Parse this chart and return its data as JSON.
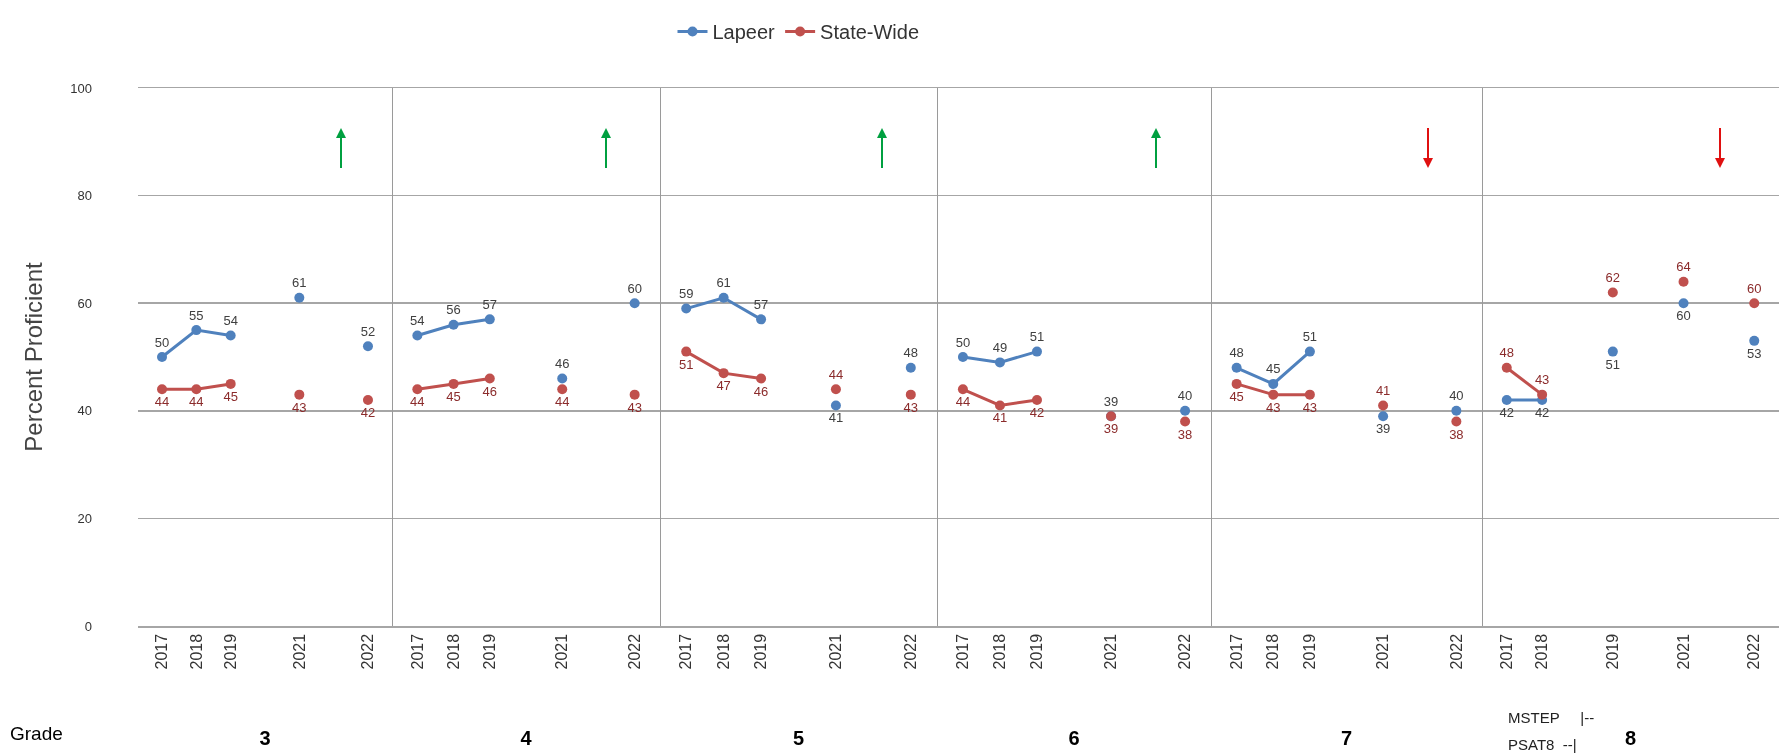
{
  "chart_data": [
    {
      "type": "line",
      "xlabel": "3",
      "ylabel": "Percent Proficient",
      "categories": [
        "2017",
        "2018",
        "2019",
        null,
        "2021",
        null,
        "2022"
      ],
      "ylim": [
        0,
        100
      ],
      "yticks": [
        0,
        20,
        40,
        60,
        80,
        100
      ],
      "grid": "y",
      "marker": "circle",
      "data_labels": true,
      "annotations": [
        "Grade"
      ],
      "series": [
        {
          "color": "#4f81bd",
          "values": [
            50,
            55,
            54,
            null,
            61,
            null,
            52
          ]
        },
        {
          "color": "#c0504d",
          "values": [
            44,
            44,
            45,
            null,
            43,
            null,
            42
          ]
        }
      ]
    },
    {
      "type": "line",
      "xlabel": "4",
      "categories": [
        "2017",
        "2018",
        "2019",
        null,
        "2021",
        null,
        "2022"
      ],
      "ylim": [
        0,
        100
      ],
      "yticks": [
        0,
        20,
        40,
        60,
        80,
        100
      ],
      "tick_labels": "x",
      "grid": "y",
      "marker": "circle",
      "data_labels": true,
      "series": [
        {
          "color": "#4f81bd",
          "values": [
            54,
            56,
            57,
            null,
            46,
            null,
            60
          ]
        },
        {
          "color": "#c0504d",
          "values": [
            44,
            45,
            46,
            null,
            44,
            null,
            43
          ]
        }
      ]
    },
    {
      "type": "line",
      "xlabel": "5",
      "categories": [
        "2017",
        "2018",
        "2019",
        null,
        "2021",
        null,
        "2022"
      ],
      "ylim": [
        0,
        100
      ],
      "yticks": [
        0,
        20,
        40,
        60,
        80,
        100
      ],
      "tick_labels": "x",
      "grid": "y",
      "marker": "circle",
      "data_labels": true,
      "legend": "top",
      "series": [
        {
          "name": "Lapeer",
          "color": "#4f81bd",
          "values": [
            59,
            61,
            57,
            null,
            41,
            null,
            48
          ]
        },
        {
          "name": "State-Wide",
          "color": "#c0504d",
          "values": [
            51,
            47,
            46,
            null,
            44,
            null,
            43
          ]
        }
      ]
    },
    {
      "type": "line",
      "xlabel": "6",
      "categories": [
        "2017",
        "2018",
        "2019",
        null,
        "2021",
        null,
        "2022"
      ],
      "ylim": [
        0,
        100
      ],
      "yticks": [
        0,
        20,
        40,
        60,
        80,
        100
      ],
      "tick_labels": "x",
      "grid": "y",
      "marker": "circle",
      "data_labels": true,
      "series": [
        {
          "color": "#4f81bd",
          "values": [
            50,
            49,
            51,
            null,
            39,
            null,
            40
          ]
        },
        {
          "color": "#c0504d",
          "values": [
            44,
            41,
            42,
            null,
            39,
            null,
            38
          ]
        }
      ]
    },
    {
      "type": "line",
      "xlabel": "7",
      "categories": [
        "2017",
        "2018",
        "2019",
        null,
        "2021",
        null,
        "2022"
      ],
      "ylim": [
        0,
        100
      ],
      "yticks": [
        0,
        20,
        40,
        60,
        80,
        100
      ],
      "tick_labels": "x",
      "grid": "y",
      "marker": "circle",
      "data_labels": true,
      "series": [
        {
          "color": "#4f81bd",
          "values": [
            48,
            45,
            51,
            null,
            39,
            null,
            40
          ]
        },
        {
          "color": "#c0504d",
          "values": [
            45,
            43,
            43,
            null,
            41,
            null,
            38
          ]
        }
      ]
    },
    {
      "type": "line",
      "xlabel": "8",
      "categories": [
        "2017",
        "2018",
        null,
        "2019",
        null,
        "2021",
        null,
        "2022"
      ],
      "ylim": [
        0,
        100
      ],
      "yticks": [
        0,
        20,
        40,
        60,
        80,
        100
      ],
      "tick_labels": "x",
      "grid": "y",
      "marker": "circle",
      "data_labels": true,
      "annotations": [
        "MSTEP     |--",
        "PSAT8  --|"
      ],
      "series": [
        {
          "color": "#4f81bd",
          "values": [
            42,
            42,
            null,
            51,
            null,
            60,
            null,
            53
          ]
        },
        {
          "color": "#c0504d",
          "values": [
            48,
            43,
            null,
            62,
            null,
            64,
            null,
            60
          ]
        }
      ]
    }
  ]
}
